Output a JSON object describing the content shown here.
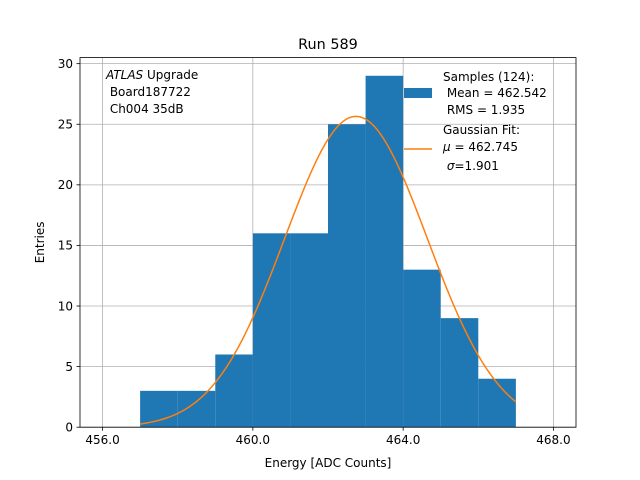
{
  "chart_data": {
    "type": "bar",
    "title": "Run 589",
    "xlabel": "Energy [ADC Counts]",
    "ylabel": "Entries",
    "xlim": [
      455.4,
      468.6
    ],
    "ylim": [
      0,
      30.5
    ],
    "grid": true,
    "xticks": [
      456.0,
      460.0,
      464.0,
      468.0
    ],
    "xtick_labels": [
      "456.0",
      "460.0",
      "464.0",
      "468.0"
    ],
    "yticks": [
      0,
      5,
      10,
      15,
      20,
      25,
      30
    ],
    "ytick_labels": [
      "0",
      "5",
      "10",
      "15",
      "20",
      "25",
      "30"
    ],
    "bin_edges": [
      457,
      458,
      459,
      460,
      461,
      462,
      463,
      464,
      465,
      466,
      467
    ],
    "counts": [
      3,
      3,
      6,
      16,
      16,
      25,
      29,
      13,
      9,
      4
    ],
    "bar_color": "#1f77b4",
    "fit": {
      "mu": 462.745,
      "sigma": 1.901,
      "peak": 25.65,
      "x_range": [
        457,
        467
      ],
      "color": "#ff7f0e"
    },
    "annotation": {
      "experiment": "ATLAS",
      "suffix": " Upgrade",
      "line2": " Board187722",
      "line3": " Ch004 35dB"
    },
    "legend": {
      "placement": "upper right",
      "samples": [
        "Samples (124):",
        " Mean = 462.542",
        " RMS = 1.935"
      ],
      "fit_title": "Gaussian Fit:",
      "fit_mu_symbol": "μ",
      "fit_mu_value": " = 462.745",
      "fit_sigma_symbol": "σ",
      "fit_sigma_value": "=1.901"
    }
  }
}
